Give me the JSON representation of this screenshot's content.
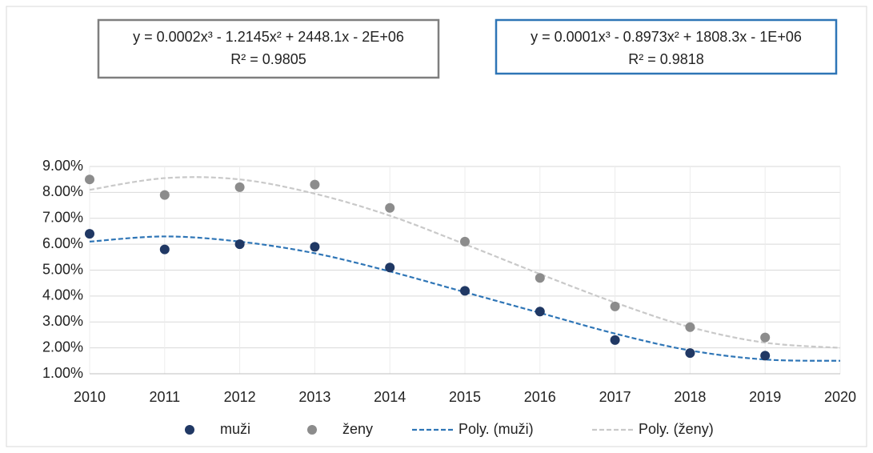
{
  "chart_data": {
    "type": "scatter",
    "annotations": [
      {
        "text": "y = 0.0002x³ - 1.2145x² + 2448.1x - 2E+06",
        "r2": "R² = 0.9805",
        "color": "#7f7f7f"
      },
      {
        "text": "y = 0.0001x³ - 0.8973x² + 1808.3x - 1E+06",
        "r2": "R² = 0.9818",
        "color": "#2e75b6"
      }
    ],
    "series": [
      {
        "name": "muži",
        "color": "#203864",
        "style": "marker",
        "x": [
          2010,
          2011,
          2012,
          2013,
          2014,
          2015,
          2016,
          2017,
          2018,
          2019
        ],
        "values": [
          6.4,
          5.8,
          6.0,
          5.9,
          5.1,
          4.2,
          3.4,
          2.3,
          1.8,
          1.7
        ]
      },
      {
        "name": "ženy",
        "color": "#8c8c8c",
        "style": "marker",
        "x": [
          2010,
          2011,
          2012,
          2013,
          2014,
          2015,
          2016,
          2017,
          2018,
          2019
        ],
        "values": [
          8.5,
          7.9,
          8.2,
          8.3,
          7.4,
          6.1,
          4.7,
          3.6,
          2.8,
          2.4
        ]
      },
      {
        "name": "Poly. (muži)",
        "color": "#2e75b6",
        "style": "dashed",
        "x": [
          2010,
          2011,
          2012,
          2013,
          2014,
          2015,
          2016,
          2017,
          2018,
          2019,
          2020
        ],
        "values": [
          6.1,
          6.3,
          6.1,
          5.65,
          4.95,
          4.15,
          3.35,
          2.55,
          1.9,
          1.55,
          1.5
        ]
      },
      {
        "name": "Poly. (ženy)",
        "color": "#c9c9c9",
        "style": "dashed",
        "x": [
          2010,
          2011,
          2012,
          2013,
          2014,
          2015,
          2016,
          2017,
          2018,
          2019,
          2020
        ],
        "values": [
          8.1,
          8.55,
          8.5,
          7.95,
          7.1,
          6.0,
          4.85,
          3.75,
          2.8,
          2.2,
          2.0
        ]
      }
    ],
    "xlim": [
      2010,
      2020
    ],
    "xticks": [
      2010,
      2011,
      2012,
      2013,
      2014,
      2015,
      2016,
      2017,
      2018,
      2019,
      2020
    ],
    "ylim": [
      1,
      9
    ],
    "yticks": [
      {
        "value": 1,
        "label": "1.00%"
      },
      {
        "value": 2,
        "label": "2.00%"
      },
      {
        "value": 3,
        "label": "3.00%"
      },
      {
        "value": 4,
        "label": "4.00%"
      },
      {
        "value": 5,
        "label": "5.00%"
      },
      {
        "value": 6,
        "label": "6.00%"
      },
      {
        "value": 7,
        "label": "7.00%"
      },
      {
        "value": 8,
        "label": "8.00%"
      },
      {
        "value": 9,
        "label": "9.00%"
      }
    ],
    "grid": true
  }
}
